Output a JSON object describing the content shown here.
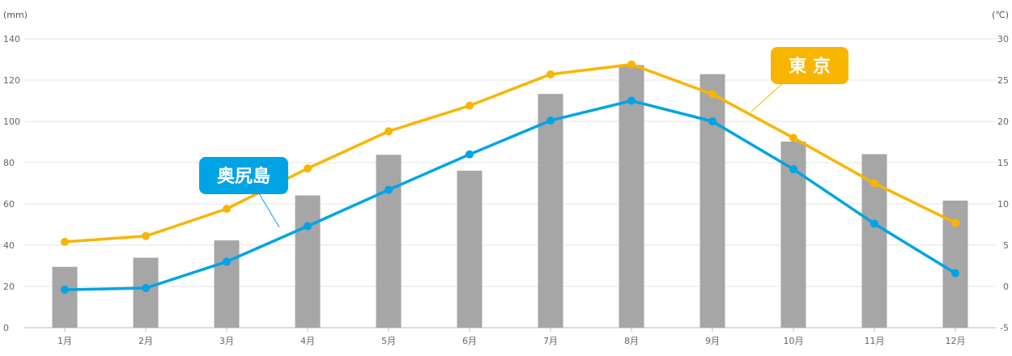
{
  "chart_data": {
    "type": "bar+line",
    "categories": [
      "1月",
      "2月",
      "3月",
      "4月",
      "5月",
      "6月",
      "7月",
      "8月",
      "9月",
      "10月",
      "11月",
      "12月"
    ],
    "left_axis": {
      "unit": "(mm)",
      "ticks": [
        0,
        20,
        40,
        60,
        80,
        100,
        120,
        140
      ],
      "range": [
        0,
        140
      ]
    },
    "right_axis": {
      "unit": "(℃)",
      "ticks": [
        -5,
        0,
        5,
        10,
        15,
        20,
        25,
        30
      ],
      "range": [
        -5,
        30
      ]
    },
    "bars": {
      "axis": "left",
      "color": "#a6a6a6",
      "values": [
        29.5,
        33.9,
        42.3,
        64.1,
        83.8,
        76.1,
        113.3,
        127.3,
        122.9,
        90.2,
        84.1,
        61.6
      ]
    },
    "series": [
      {
        "name": "東 京",
        "axis": "right",
        "color": "#f8b500",
        "values": [
          5.4,
          6.1,
          9.4,
          14.3,
          18.8,
          21.9,
          25.7,
          26.9,
          23.3,
          18.0,
          12.5,
          7.7
        ]
      },
      {
        "name": "奥尻島",
        "axis": "right",
        "color": "#00a4e4",
        "values": [
          -0.4,
          -0.2,
          3.0,
          7.3,
          11.7,
          16.0,
          20.1,
          22.5,
          20.0,
          14.2,
          7.6,
          1.6
        ]
      }
    ],
    "grid": true,
    "labels": [
      {
        "text": "東 京",
        "color": "#f8b500"
      },
      {
        "text": "奥尻島",
        "color": "#00a4e4"
      }
    ]
  }
}
